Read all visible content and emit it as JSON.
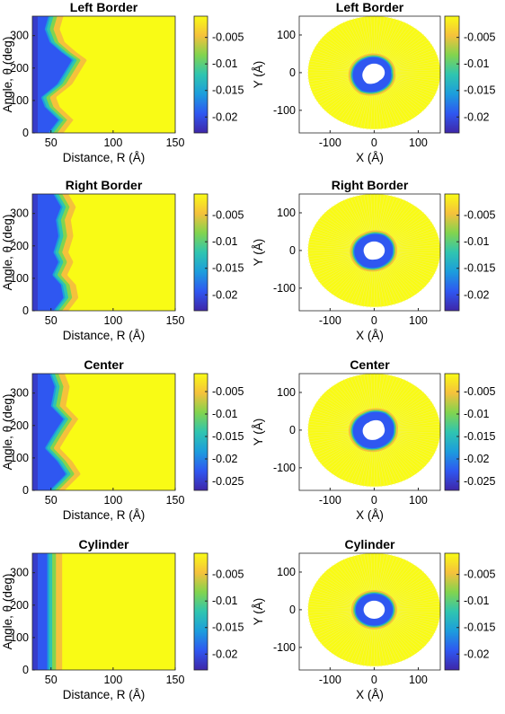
{
  "colormap": [
    "#3e26a8",
    "#2f57f1",
    "#1c9ddc",
    "#2fc5b0",
    "#82d44e",
    "#f5c13c",
    "#f9fb15"
  ],
  "chart_data": [
    {
      "type": "heatmap",
      "title": "Left Border",
      "xlabel": "Distance, R (Å)",
      "ylabel": "Angle, θ (deg)",
      "xlim": [
        35,
        150
      ],
      "ylim": [
        0,
        360
      ],
      "xticks": [
        50,
        100,
        150
      ],
      "yticks": [
        0,
        100,
        200,
        300
      ],
      "colorbar": {
        "range": [
          -0.023,
          -0.001
        ],
        "ticks": [
          -0.02,
          -0.015,
          -0.01,
          -0.005
        ],
        "tick_labels": [
          "-0.02",
          "-0.015",
          "-0.01",
          "-0.005"
        ]
      },
      "boundary_profile": {
        "theta": [
          0,
          40,
          80,
          110,
          150,
          200,
          225,
          250,
          280,
          320,
          360
        ],
        "r": [
          48,
          56,
          45,
          42,
          55,
          63,
          67,
          58,
          49,
          45,
          48
        ]
      }
    },
    {
      "type": "heatmap",
      "title": "Left Border",
      "xlabel": "X (Å)",
      "ylabel": "Y (Å)",
      "xlim": [
        -170,
        150
      ],
      "ylim": [
        -160,
        150
      ],
      "xticks": [
        -100,
        0,
        100
      ],
      "yticks": [
        -100,
        0,
        100
      ],
      "colorbar": {
        "range": [
          -0.023,
          -0.001
        ],
        "ticks": [
          -0.02,
          -0.015,
          -0.01,
          -0.005
        ],
        "tick_labels": [
          "-0.02",
          "-0.015",
          "-0.01",
          "-0.005"
        ]
      }
    },
    {
      "type": "heatmap",
      "title": "Right Border",
      "xlabel": "Distance, R (Å)",
      "ylabel": "Angle, θ (deg)",
      "xlim": [
        35,
        150
      ],
      "ylim": [
        0,
        360
      ],
      "xticks": [
        50,
        100,
        150
      ],
      "yticks": [
        0,
        100,
        200,
        300
      ],
      "colorbar": {
        "range": [
          -0.023,
          -0.001
        ],
        "ticks": [
          -0.02,
          -0.015,
          -0.01,
          -0.005
        ],
        "tick_labels": [
          "-0.02",
          "-0.015",
          "-0.01",
          "-0.005"
        ]
      },
      "boundary_profile": {
        "theta": [
          0,
          40,
          80,
          110,
          150,
          180,
          230,
          280,
          320,
          360
        ],
        "r": [
          52,
          60,
          58,
          51,
          56,
          52,
          56,
          54,
          58,
          52
        ]
      }
    },
    {
      "type": "heatmap",
      "title": "Right Border",
      "xlabel": "X (Å)",
      "ylabel": "Y (Å)",
      "xlim": [
        -170,
        150
      ],
      "ylim": [
        -160,
        150
      ],
      "xticks": [
        -100,
        0,
        100
      ],
      "yticks": [
        -100,
        0,
        100
      ],
      "colorbar": {
        "range": [
          -0.023,
          -0.001
        ],
        "ticks": [
          -0.02,
          -0.015,
          -0.01,
          -0.005
        ],
        "tick_labels": [
          "-0.02",
          "-0.015",
          "-0.01",
          "-0.005"
        ]
      }
    },
    {
      "type": "heatmap",
      "title": "Center",
      "xlabel": "Distance, R (Å)",
      "ylabel": "Angle, θ (deg)",
      "xlim": [
        35,
        150
      ],
      "ylim": [
        0,
        360
      ],
      "xticks": [
        50,
        100,
        150
      ],
      "yticks": [
        0,
        100,
        200,
        300
      ],
      "colorbar": {
        "range": [
          -0.027,
          -0.001
        ],
        "ticks": [
          -0.025,
          -0.02,
          -0.015,
          -0.01,
          -0.005
        ],
        "tick_labels": [
          "-0.025",
          "-0.02",
          "-0.015",
          "-0.01",
          "-0.005"
        ]
      },
      "boundary_profile": {
        "theta": [
          0,
          50,
          90,
          130,
          180,
          220,
          260,
          320,
          360
        ],
        "r": [
          49,
          62,
          55,
          45,
          53,
          60,
          50,
          53,
          49
        ]
      }
    },
    {
      "type": "heatmap",
      "title": "Center",
      "xlabel": "X (Å)",
      "ylabel": "Y (Å)",
      "xlim": [
        -170,
        150
      ],
      "ylim": [
        -160,
        150
      ],
      "xticks": [
        -100,
        0,
        100
      ],
      "yticks": [
        -100,
        0,
        100
      ],
      "colorbar": {
        "range": [
          -0.027,
          -0.001
        ],
        "ticks": [
          -0.025,
          -0.02,
          -0.015,
          -0.01,
          -0.005
        ],
        "tick_labels": [
          "-0.025",
          "-0.02",
          "-0.015",
          "-0.01",
          "-0.005"
        ]
      }
    },
    {
      "type": "heatmap",
      "title": "Cylinder",
      "xlabel": "Distance, R (Å)",
      "ylabel": "Angle, θ (deg)",
      "xlim": [
        35,
        150
      ],
      "ylim": [
        0,
        360
      ],
      "xticks": [
        50,
        100,
        150
      ],
      "yticks": [
        0,
        100,
        200,
        300
      ],
      "colorbar": {
        "range": [
          -0.023,
          -0.001
        ],
        "ticks": [
          -0.02,
          -0.015,
          -0.01,
          -0.005
        ],
        "tick_labels": [
          "-0.02",
          "-0.015",
          "-0.01",
          "-0.005"
        ]
      },
      "boundary_profile": {
        "theta": [
          0,
          360
        ],
        "r": [
          47,
          47
        ]
      }
    },
    {
      "type": "heatmap",
      "title": "Cylinder",
      "xlabel": "X (Å)",
      "ylabel": "Y (Å)",
      "xlim": [
        -170,
        150
      ],
      "ylim": [
        -160,
        150
      ],
      "xticks": [
        -100,
        0,
        100
      ],
      "yticks": [
        -100,
        0,
        100
      ],
      "colorbar": {
        "range": [
          -0.023,
          -0.001
        ],
        "ticks": [
          -0.02,
          -0.015,
          -0.01,
          -0.005
        ],
        "tick_labels": [
          "-0.02",
          "-0.015",
          "-0.01",
          "-0.005"
        ]
      }
    }
  ]
}
